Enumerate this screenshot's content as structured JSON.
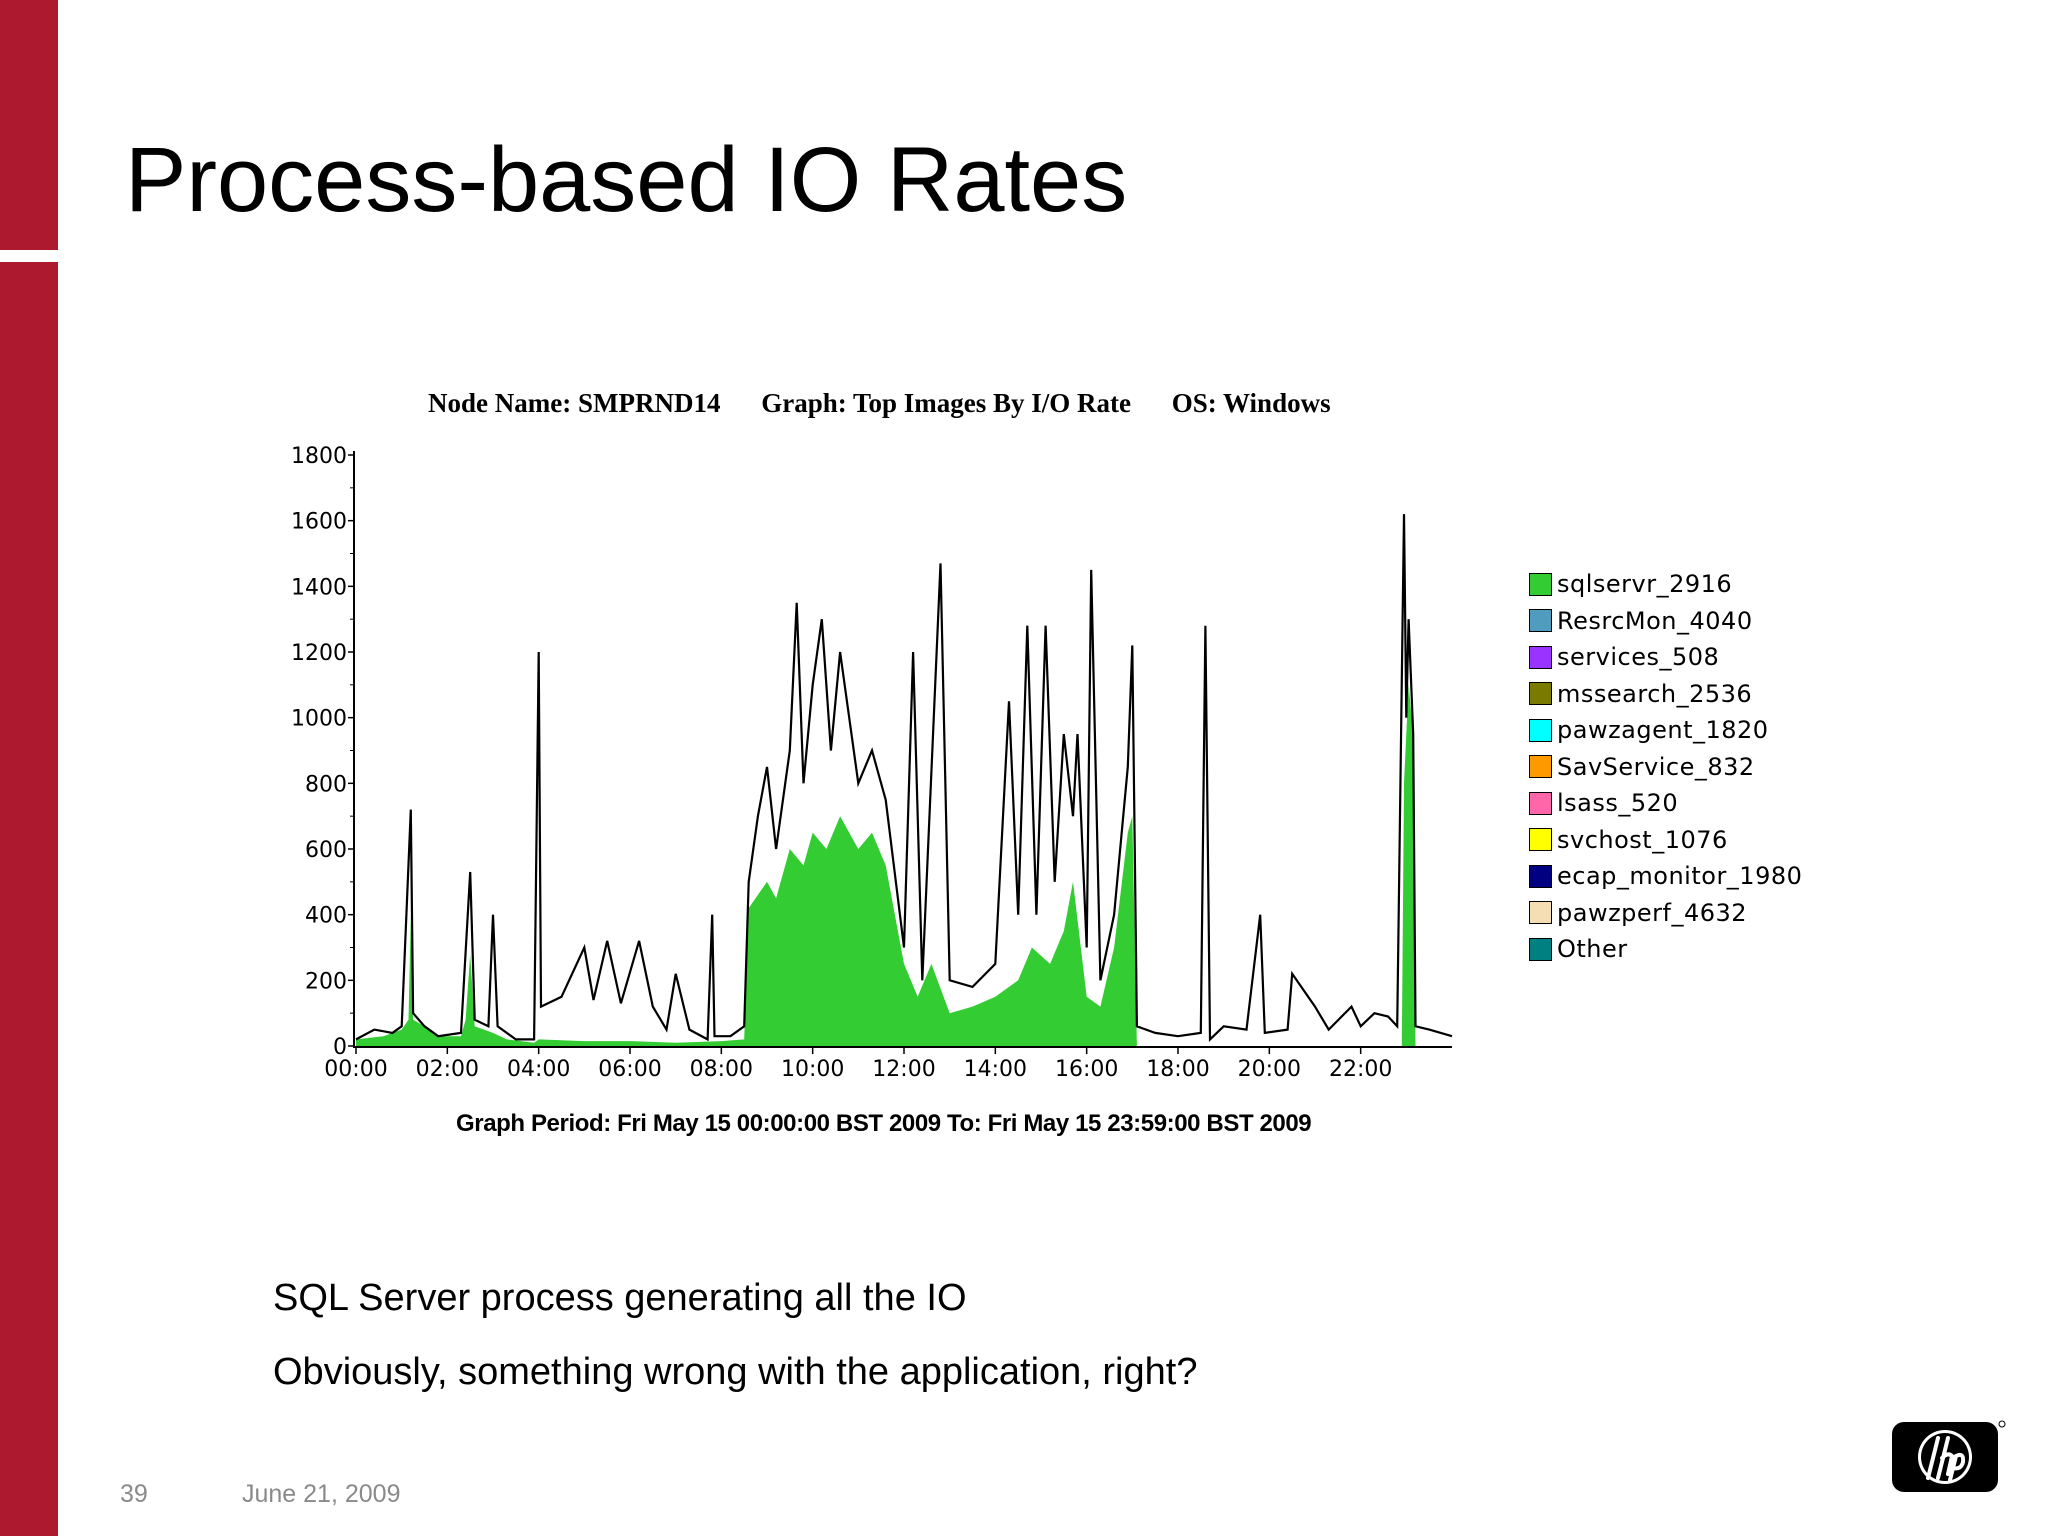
{
  "slide": {
    "title": "Process-based IO Rates",
    "bullets": [
      "SQL Server process generating  all the IO",
      "Obviously, something wrong with the application, right?"
    ],
    "page_number": "39",
    "date": "June 21, 2009"
  },
  "logo": {
    "icon": "hp-logo-icon"
  },
  "colors": {
    "accent": "#ad1a30",
    "sqlservr_fill": "#33cc33",
    "total_line": "#000000"
  },
  "chart_data": {
    "type": "area",
    "header": {
      "node": "Node Name: SMPRND14",
      "graph": "Graph: Top Images By I/O Rate",
      "os": "OS: Windows"
    },
    "period": "Graph Period: Fri May 15 00:00:00 BST 2009 To: Fri May 15 23:59:00 BST 2009",
    "x_ticks": [
      "00:00",
      "02:00",
      "04:00",
      "06:00",
      "08:00",
      "10:00",
      "12:00",
      "14:00",
      "16:00",
      "18:00",
      "20:00",
      "22:00"
    ],
    "y_ticks": [
      "0",
      "200",
      "400",
      "600",
      "800",
      "1000",
      "1200",
      "1400",
      "1600",
      "1800"
    ],
    "xlim_hours": [
      0,
      24
    ],
    "ylim": [
      0,
      1800
    ],
    "legend": [
      {
        "name": "sqlservr_2916",
        "color": "#33cc33"
      },
      {
        "name": "ResrcMon_4040",
        "color": "#4f9cbf"
      },
      {
        "name": "services_508",
        "color": "#9933ff"
      },
      {
        "name": "mssearch_2536",
        "color": "#7a7a00"
      },
      {
        "name": "pawzagent_1820",
        "color": "#00ffff"
      },
      {
        "name": "SavService_832",
        "color": "#ff9900"
      },
      {
        "name": "lsass_520",
        "color": "#ff66aa"
      },
      {
        "name": "svchost_1076",
        "color": "#ffff00"
      },
      {
        "name": "ecap_monitor_1980",
        "color": "#000080"
      },
      {
        "name": "pawzperf_4632",
        "color": "#f5deb3"
      },
      {
        "name": "Other",
        "color": "#008080"
      }
    ],
    "series": [
      {
        "name": "sqlservr_2916",
        "points": [
          [
            0.0,
            20
          ],
          [
            0.6,
            30
          ],
          [
            1.0,
            50
          ],
          [
            1.15,
            80
          ],
          [
            1.2,
            400
          ],
          [
            1.25,
            80
          ],
          [
            1.5,
            60
          ],
          [
            1.8,
            30
          ],
          [
            2.3,
            30
          ],
          [
            2.4,
            80
          ],
          [
            2.5,
            280
          ],
          [
            2.6,
            60
          ],
          [
            3.0,
            40
          ],
          [
            3.3,
            20
          ],
          [
            3.9,
            10
          ],
          [
            4.0,
            20
          ],
          [
            5.0,
            15
          ],
          [
            6.0,
            15
          ],
          [
            7.0,
            10
          ],
          [
            8.0,
            15
          ],
          [
            8.5,
            20
          ],
          [
            8.6,
            420
          ],
          [
            9.0,
            500
          ],
          [
            9.2,
            450
          ],
          [
            9.5,
            600
          ],
          [
            9.8,
            550
          ],
          [
            10.0,
            650
          ],
          [
            10.3,
            600
          ],
          [
            10.6,
            700
          ],
          [
            11.0,
            600
          ],
          [
            11.3,
            650
          ],
          [
            11.6,
            550
          ],
          [
            12.0,
            250
          ],
          [
            12.3,
            150
          ],
          [
            12.6,
            250
          ],
          [
            13.0,
            100
          ],
          [
            13.5,
            120
          ],
          [
            14.0,
            150
          ],
          [
            14.5,
            200
          ],
          [
            14.8,
            300
          ],
          [
            15.2,
            250
          ],
          [
            15.5,
            350
          ],
          [
            15.7,
            500
          ],
          [
            16.0,
            150
          ],
          [
            16.3,
            120
          ],
          [
            16.6,
            300
          ],
          [
            16.9,
            650
          ],
          [
            17.0,
            700
          ],
          [
            17.1,
            0
          ],
          [
            22.9,
            0
          ],
          [
            22.95,
            800
          ],
          [
            23.05,
            1100
          ],
          [
            23.15,
            950
          ],
          [
            23.2,
            0
          ],
          [
            24.0,
            0
          ]
        ]
      },
      {
        "name": "Total",
        "points": [
          [
            0.0,
            20
          ],
          [
            0.4,
            50
          ],
          [
            0.8,
            40
          ],
          [
            1.0,
            60
          ],
          [
            1.2,
            720
          ],
          [
            1.25,
            100
          ],
          [
            1.5,
            60
          ],
          [
            1.8,
            30
          ],
          [
            2.3,
            40
          ],
          [
            2.5,
            530
          ],
          [
            2.6,
            80
          ],
          [
            2.9,
            60
          ],
          [
            3.0,
            400
          ],
          [
            3.1,
            60
          ],
          [
            3.5,
            20
          ],
          [
            3.9,
            20
          ],
          [
            4.0,
            1200
          ],
          [
            4.05,
            120
          ],
          [
            4.5,
            150
          ],
          [
            5.0,
            300
          ],
          [
            5.2,
            140
          ],
          [
            5.5,
            320
          ],
          [
            5.8,
            130
          ],
          [
            6.2,
            320
          ],
          [
            6.5,
            120
          ],
          [
            6.8,
            50
          ],
          [
            7.0,
            220
          ],
          [
            7.3,
            50
          ],
          [
            7.7,
            20
          ],
          [
            7.8,
            400
          ],
          [
            7.85,
            30
          ],
          [
            8.2,
            30
          ],
          [
            8.5,
            60
          ],
          [
            8.6,
            500
          ],
          [
            8.8,
            700
          ],
          [
            9.0,
            850
          ],
          [
            9.2,
            600
          ],
          [
            9.5,
            900
          ],
          [
            9.65,
            1350
          ],
          [
            9.8,
            800
          ],
          [
            10.0,
            1100
          ],
          [
            10.2,
            1300
          ],
          [
            10.4,
            900
          ],
          [
            10.6,
            1200
          ],
          [
            11.0,
            800
          ],
          [
            11.3,
            900
          ],
          [
            11.6,
            750
          ],
          [
            12.0,
            300
          ],
          [
            12.2,
            1200
          ],
          [
            12.4,
            200
          ],
          [
            12.8,
            1470
          ],
          [
            13.0,
            200
          ],
          [
            13.5,
            180
          ],
          [
            14.0,
            250
          ],
          [
            14.3,
            1050
          ],
          [
            14.5,
            400
          ],
          [
            14.7,
            1280
          ],
          [
            14.9,
            400
          ],
          [
            15.1,
            1280
          ],
          [
            15.3,
            500
          ],
          [
            15.5,
            950
          ],
          [
            15.7,
            700
          ],
          [
            15.8,
            950
          ],
          [
            16.0,
            300
          ],
          [
            16.1,
            1450
          ],
          [
            16.3,
            200
          ],
          [
            16.6,
            400
          ],
          [
            16.9,
            850
          ],
          [
            17.0,
            1220
          ],
          [
            17.1,
            60
          ],
          [
            17.5,
            40
          ],
          [
            18.0,
            30
          ],
          [
            18.5,
            40
          ],
          [
            18.6,
            1280
          ],
          [
            18.7,
            20
          ],
          [
            19.0,
            60
          ],
          [
            19.5,
            50
          ],
          [
            19.8,
            400
          ],
          [
            19.9,
            40
          ],
          [
            20.4,
            50
          ],
          [
            20.5,
            220
          ],
          [
            21.0,
            120
          ],
          [
            21.3,
            50
          ],
          [
            21.8,
            120
          ],
          [
            22.0,
            60
          ],
          [
            22.3,
            100
          ],
          [
            22.6,
            90
          ],
          [
            22.8,
            60
          ],
          [
            22.95,
            1620
          ],
          [
            23.0,
            1000
          ],
          [
            23.05,
            1300
          ],
          [
            23.15,
            950
          ],
          [
            23.2,
            60
          ],
          [
            23.5,
            50
          ],
          [
            24.0,
            30
          ]
        ]
      }
    ]
  }
}
